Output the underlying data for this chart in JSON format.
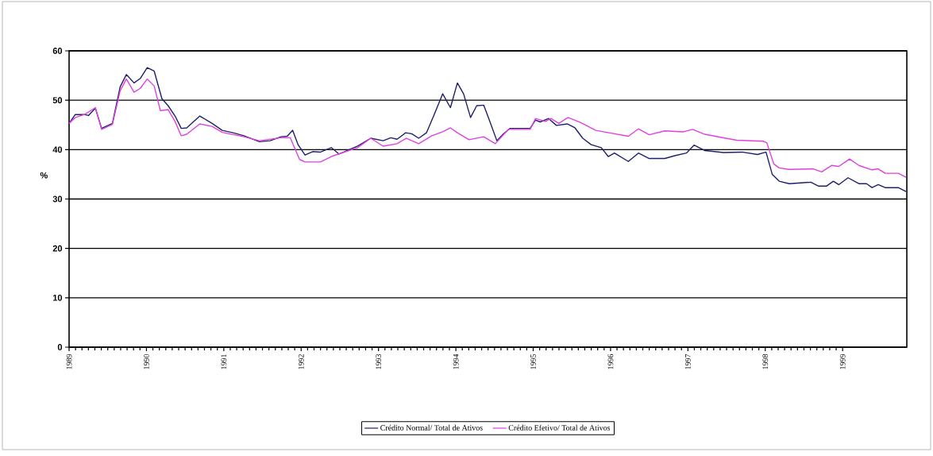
{
  "chart_data": {
    "type": "line",
    "ylabel": "%",
    "xlim": [
      1989,
      1999.83
    ],
    "ylim": [
      0,
      60
    ],
    "xticks": [
      1989,
      1990,
      1991,
      1992,
      1993,
      1994,
      1995,
      1996,
      1997,
      1998,
      1999
    ],
    "yticks": [
      0,
      10,
      20,
      30,
      40,
      50,
      60
    ],
    "grid": "y",
    "legend": "bottom",
    "line_style": "solid",
    "marker": "none",
    "series": [
      {
        "name": "Crédito Normal/ Total de Ativos",
        "color": "#1f1f6b",
        "x": [
          1989.0,
          1989.08,
          1989.2,
          1989.25,
          1989.34,
          1989.42,
          1989.56,
          1989.66,
          1989.74,
          1989.84,
          1989.92,
          1990.01,
          1990.1,
          1990.2,
          1990.28,
          1990.37,
          1990.45,
          1990.52,
          1990.69,
          1990.85,
          1990.98,
          1991.12,
          1991.26,
          1991.46,
          1991.6,
          1991.74,
          1991.82,
          1991.89,
          1991.96,
          1992.05,
          1992.15,
          1992.25,
          1992.39,
          1992.49,
          1992.73,
          1992.9,
          1993.06,
          1993.16,
          1993.24,
          1993.35,
          1993.43,
          1993.52,
          1993.62,
          1993.72,
          1993.83,
          1993.93,
          1994.02,
          1994.1,
          1994.19,
          1994.27,
          1994.36,
          1994.44,
          1994.53,
          1994.61,
          1994.7,
          1994.96,
          1995.03,
          1995.09,
          1995.2,
          1995.3,
          1995.44,
          1995.54,
          1995.64,
          1995.75,
          1995.88,
          1995.97,
          1996.05,
          1996.23,
          1996.36,
          1996.5,
          1996.7,
          1996.84,
          1996.98,
          1997.08,
          1997.22,
          1997.46,
          1997.7,
          1997.9,
          1998.01,
          1998.09,
          1998.18,
          1998.31,
          1998.59,
          1998.69,
          1998.79,
          1998.88,
          1998.95,
          1999.07,
          1999.21,
          1999.31,
          1999.38,
          1999.46,
          1999.55,
          1999.72,
          1999.82
        ],
        "values": [
          45.3,
          47.1,
          47.1,
          46.9,
          48.4,
          44.3,
          45.3,
          52.7,
          55.2,
          53.5,
          54.4,
          56.6,
          55.9,
          50.3,
          48.9,
          46.8,
          44.3,
          44.4,
          46.8,
          45.3,
          43.9,
          43.4,
          42.8,
          41.6,
          41.8,
          42.6,
          42.7,
          43.9,
          41.0,
          38.9,
          39.6,
          39.5,
          40.4,
          39.1,
          40.7,
          42.3,
          41.8,
          42.4,
          42.1,
          43.4,
          43.2,
          42.3,
          43.4,
          47.1,
          51.3,
          48.5,
          53.5,
          51.3,
          46.5,
          48.9,
          49.0,
          45.7,
          41.8,
          43.1,
          44.3,
          44.3,
          46.0,
          45.6,
          46.3,
          44.9,
          45.2,
          44.4,
          42.3,
          41.0,
          40.4,
          38.6,
          39.3,
          37.6,
          39.3,
          38.2,
          38.2,
          38.8,
          39.3,
          40.9,
          39.8,
          39.4,
          39.5,
          39.0,
          39.5,
          35.0,
          33.6,
          33.1,
          33.4,
          32.6,
          32.6,
          33.6,
          32.9,
          34.3,
          33.1,
          33.1,
          32.3,
          32.9,
          32.3,
          32.3,
          31.5
        ]
      },
      {
        "name": "Crédito Efetivo/ Total de Ativos",
        "color": "#e040e0",
        "x": [
          1989.0,
          1989.08,
          1989.2,
          1989.34,
          1989.42,
          1989.56,
          1989.66,
          1989.74,
          1989.84,
          1989.92,
          1990.01,
          1990.1,
          1990.18,
          1990.28,
          1990.37,
          1990.45,
          1990.52,
          1990.69,
          1990.85,
          1990.98,
          1991.26,
          1991.46,
          1991.74,
          1991.86,
          1991.98,
          1992.05,
          1992.25,
          1992.39,
          1992.73,
          1992.9,
          1993.06,
          1993.24,
          1993.36,
          1993.52,
          1993.69,
          1993.83,
          1993.93,
          1994.02,
          1994.17,
          1994.36,
          1994.51,
          1994.68,
          1994.96,
          1995.03,
          1995.16,
          1995.23,
          1995.33,
          1995.45,
          1995.61,
          1995.81,
          1995.98,
          1996.23,
          1996.36,
          1996.5,
          1996.7,
          1996.94,
          1997.06,
          1997.22,
          1997.42,
          1997.63,
          1997.97,
          1998.02,
          1998.11,
          1998.18,
          1998.31,
          1998.62,
          1998.73,
          1998.86,
          1998.95,
          1999.09,
          1999.21,
          1999.38,
          1999.46,
          1999.55,
          1999.72,
          1999.82
        ],
        "values": [
          45.3,
          46.5,
          47.1,
          48.5,
          44.1,
          45.1,
          51.9,
          54.3,
          51.6,
          52.4,
          54.3,
          52.9,
          47.9,
          48.1,
          45.7,
          42.8,
          43.1,
          45.2,
          44.7,
          43.5,
          42.6,
          41.8,
          42.4,
          42.4,
          38.0,
          37.5,
          37.5,
          38.6,
          40.4,
          42.3,
          40.7,
          41.2,
          42.3,
          41.2,
          42.8,
          43.6,
          44.4,
          43.4,
          42.0,
          42.6,
          41.2,
          44.1,
          44.1,
          46.3,
          45.7,
          46.3,
          45.3,
          46.5,
          45.5,
          43.9,
          43.4,
          42.7,
          44.2,
          43.0,
          43.8,
          43.6,
          44.1,
          43.1,
          42.5,
          41.9,
          41.7,
          41.4,
          37.1,
          36.3,
          36.0,
          36.1,
          35.5,
          36.8,
          36.6,
          38.1,
          36.8,
          35.9,
          36.1,
          35.2,
          35.2,
          34.4
        ]
      }
    ]
  }
}
